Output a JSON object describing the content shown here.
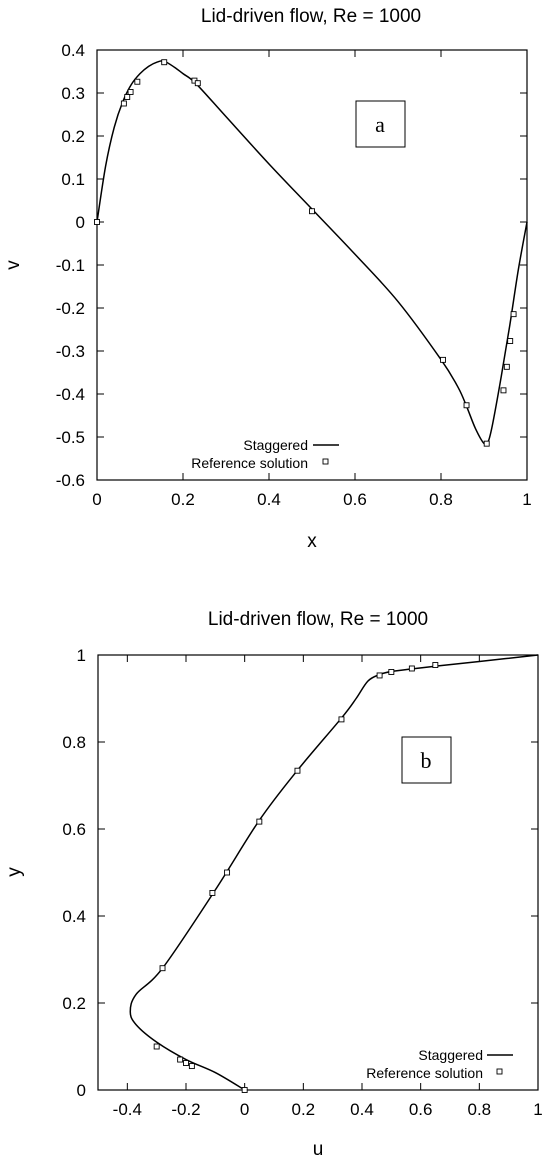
{
  "chart_data": [
    {
      "type": "line",
      "title": "Lid-driven flow, Re = 1000",
      "xlabel": "x",
      "ylabel": "v",
      "xlim": [
        0,
        1
      ],
      "ylim": [
        -0.6,
        0.4
      ],
      "xticks": [
        "0",
        "0.2",
        "0.4",
        "0.6",
        "0.8",
        "1"
      ],
      "yticks": [
        "0.4",
        "0.3",
        "0.2",
        "0.1",
        "0",
        "-0.1",
        "-0.2",
        "-0.3",
        "-0.4",
        "-0.5",
        "-0.6"
      ],
      "panel_label": "a",
      "legend_position": "bottom-center",
      "series": [
        {
          "name": "Staggered",
          "style": "line",
          "x": [
            0,
            0.02,
            0.04,
            0.06,
            0.08,
            0.1,
            0.12,
            0.14,
            0.156,
            0.18,
            0.2,
            0.23,
            0.3,
            0.4,
            0.5,
            0.6,
            0.7,
            0.8,
            0.84,
            0.86,
            0.88,
            0.9,
            0.91,
            0.92,
            0.94,
            0.96,
            0.98,
            1.0
          ],
          "y": [
            0,
            0.13,
            0.22,
            0.28,
            0.32,
            0.345,
            0.362,
            0.372,
            0.374,
            0.36,
            0.345,
            0.322,
            0.245,
            0.135,
            0.03,
            -0.075,
            -0.185,
            -0.32,
            -0.385,
            -0.43,
            -0.48,
            -0.515,
            -0.51,
            -0.47,
            -0.36,
            -0.24,
            -0.11,
            0
          ]
        },
        {
          "name": "Reference solution",
          "style": "markers",
          "x": [
            0,
            0.0625,
            0.0703,
            0.0781,
            0.0938,
            0.1563,
            0.2266,
            0.2344,
            0.5,
            0.8047,
            0.8594,
            0.9063,
            0.9453,
            0.9531,
            0.9609,
            0.9688
          ],
          "y": [
            0,
            0.2756,
            0.2907,
            0.3024,
            0.3262,
            0.3716,
            0.3288,
            0.3228,
            0.0251,
            -0.3206,
            -0.4262,
            -0.5155,
            -0.3915,
            -0.3368,
            -0.2768,
            -0.2143
          ]
        }
      ]
    },
    {
      "type": "line",
      "title": "Lid-driven flow, Re = 1000",
      "xlabel": "u",
      "ylabel": "y",
      "xlim": [
        -0.5,
        1
      ],
      "ylim": [
        0,
        1
      ],
      "xticks": [
        "-0.4",
        "-0.2",
        "0",
        "0.2",
        "0.4",
        "0.6",
        "0.8",
        "1"
      ],
      "yticks": [
        "1",
        "0.8",
        "0.6",
        "0.4",
        "0.2",
        "0"
      ],
      "panel_label": "b",
      "legend_position": "bottom-right",
      "series": [
        {
          "name": "Staggered",
          "style": "line",
          "u": [
            0,
            -0.1,
            -0.2,
            -0.3,
            -0.37,
            -0.39,
            -0.37,
            -0.28,
            -0.1,
            0.05,
            0.18,
            0.33,
            0.38,
            0.42,
            0.46,
            0.5,
            0.57,
            0.66,
            0.8,
            1.0
          ],
          "y": [
            0,
            0.04,
            0.07,
            0.11,
            0.15,
            0.18,
            0.22,
            0.28,
            0.46,
            0.62,
            0.735,
            0.855,
            0.9,
            0.94,
            0.955,
            0.962,
            0.968,
            0.975,
            0.985,
            1.0
          ]
        },
        {
          "name": "Reference solution",
          "style": "markers",
          "u": [
            0,
            -0.3,
            -0.22,
            -0.2,
            -0.18,
            -0.28,
            -0.11,
            -0.06,
            0.05,
            0.18,
            0.33,
            0.46,
            0.5,
            0.57,
            0.65
          ],
          "y": [
            0,
            0.1,
            0.07,
            0.062,
            0.055,
            0.28,
            0.453,
            0.5,
            0.617,
            0.734,
            0.852,
            0.953,
            0.961,
            0.969,
            0.977
          ]
        }
      ]
    }
  ]
}
